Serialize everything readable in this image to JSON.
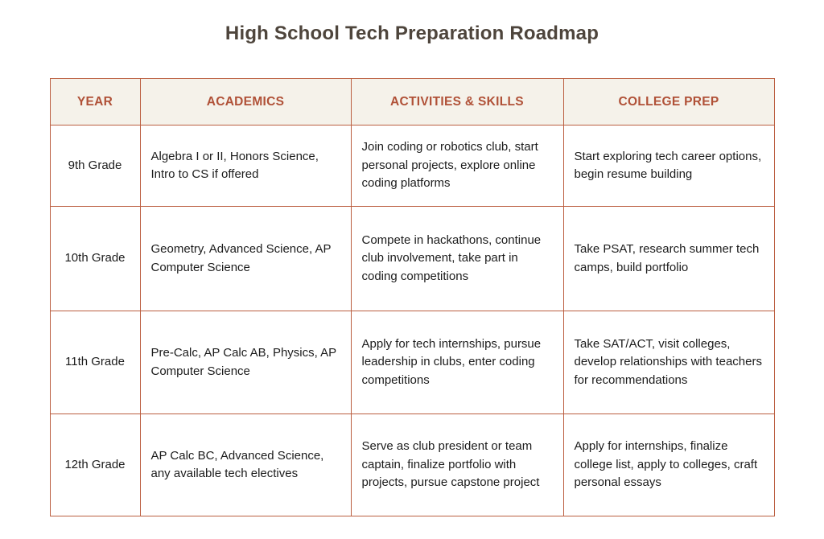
{
  "page": {
    "title": "High School Tech Preparation Roadmap"
  },
  "colors": {
    "border_accent": "#bb5e40",
    "header_background": "#f5f2ea",
    "header_text": "#b05137",
    "title_text": "#4e453c",
    "body_text": "#1c1c1c",
    "page_background": "#ffffff"
  },
  "table": {
    "columns": [
      "YEAR",
      "ACADEMICS",
      "ACTIVITIES & SKILLS",
      "COLLEGE PREP"
    ],
    "rows": [
      {
        "year": "9th Grade",
        "academics": "Algebra I or II, Honors Science, Intro to CS if offered",
        "activities": "Join coding or robotics club, start personal projects, explore online coding platforms",
        "college_prep": "Start exploring tech career options, begin resume building"
      },
      {
        "year": "10th Grade",
        "academics": "Geometry, Advanced Science, AP Computer Science",
        "activities": "Compete in hackathons, continue club involvement, take part in coding competitions",
        "college_prep": "Take PSAT, research summer tech camps, build portfolio"
      },
      {
        "year": "11th Grade",
        "academics": "Pre-Calc, AP Calc AB, Physics, AP Computer Science",
        "activities": "Apply for tech internships, pursue leadership in clubs, enter coding competitions",
        "college_prep": "Take SAT/ACT, visit colleges, develop relationships with teachers for recommendations"
      },
      {
        "year": "12th Grade",
        "academics": "AP Calc BC, Advanced Science, any available tech electives",
        "activities": "Serve as club president or team captain, finalize portfolio with projects, pursue capstone project",
        "college_prep": "Apply for internships, finalize college list, apply to colleges, craft personal essays"
      }
    ]
  }
}
